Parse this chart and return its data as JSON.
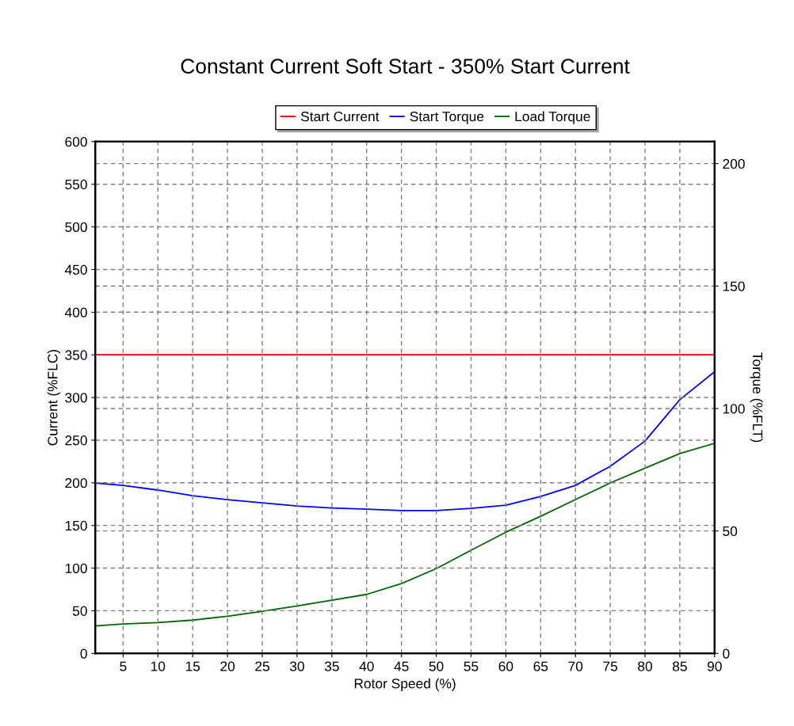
{
  "chart_data": {
    "type": "line",
    "title": "Constant Current Soft Start - 350% Start Current",
    "xlabel": "Rotor Speed (%)",
    "ylabel": "Current (%FLC)",
    "y2label": "Torque (%FLT)",
    "x": [
      1,
      5,
      10,
      15,
      20,
      25,
      30,
      35,
      40,
      45,
      50,
      55,
      60,
      65,
      70,
      75,
      80,
      85,
      90
    ],
    "series": [
      {
        "name": "Start Current",
        "color": "#ff0000",
        "x": [
          1,
          90
        ],
        "values": [
          350,
          350
        ]
      },
      {
        "name": "Start Torque",
        "color": "#0000ff",
        "axis": "y2",
        "values": [
          69.6,
          68.6,
          66.7,
          64.4,
          62.8,
          61.5,
          60.2,
          59.4,
          58.9,
          58.3,
          58.3,
          59.2,
          60.5,
          64.1,
          68.6,
          76.4,
          86.7,
          103.6,
          115.0
        ]
      },
      {
        "name": "Load Torque",
        "color": "#006400",
        "axis": "y2",
        "values": [
          11.2,
          12.0,
          12.6,
          13.6,
          15.2,
          17.2,
          19.4,
          21.7,
          24.1,
          28.5,
          34.6,
          42.1,
          49.5,
          56.0,
          62.8,
          69.6,
          75.6,
          81.6,
          85.8
        ]
      }
    ],
    "xlim": [
      1,
      90
    ],
    "xticks": [
      5,
      10,
      15,
      20,
      25,
      30,
      35,
      40,
      45,
      50,
      55,
      60,
      65,
      70,
      75,
      80,
      85,
      90
    ],
    "ylim": [
      0,
      600
    ],
    "yticks": [
      0,
      50,
      100,
      150,
      200,
      250,
      300,
      350,
      400,
      450,
      500,
      550,
      600
    ],
    "y2lim": [
      0,
      209
    ],
    "y2ticks": [
      0,
      50,
      100,
      150,
      200
    ],
    "grid": true,
    "legend": "top",
    "marker": "none",
    "line_style": "solid"
  }
}
